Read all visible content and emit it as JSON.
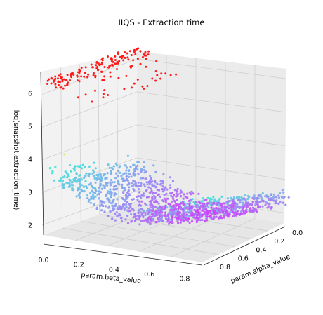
{
  "chart_data": {
    "type": "scatter",
    "projection": "3d",
    "title": "IIQS - Extraction time",
    "xlabel": "param.beta_value",
    "ylabel": "param.alpha_value",
    "zlabel": "log(snapshot.extraction_time)",
    "xlim": [
      0.0,
      0.9
    ],
    "ylim": [
      0.0,
      0.9
    ],
    "zlim": [
      1.7,
      6.6
    ],
    "xticks": [
      "0.0",
      "0.2",
      "0.4",
      "0.6",
      "0.8"
    ],
    "yticks": [
      "0.0",
      "0.2",
      "0.4",
      "0.6",
      "0.8"
    ],
    "zticks": [
      "2",
      "3",
      "4",
      "5",
      "6"
    ],
    "colormap": "rainbow",
    "grid": true,
    "legend": "none",
    "clusters": [
      {
        "region": "upper band",
        "z_range": [
          5.7,
          6.5
        ],
        "color": "#ff1a1a"
      },
      {
        "region": "main surface",
        "z_range": [
          1.8,
          3.8
        ],
        "color_range": [
          "#4b0fff",
          "#3ff0d8"
        ]
      },
      {
        "region": "outlier",
        "z_approx": 4.0,
        "color": "#c9f06a"
      }
    ]
  }
}
